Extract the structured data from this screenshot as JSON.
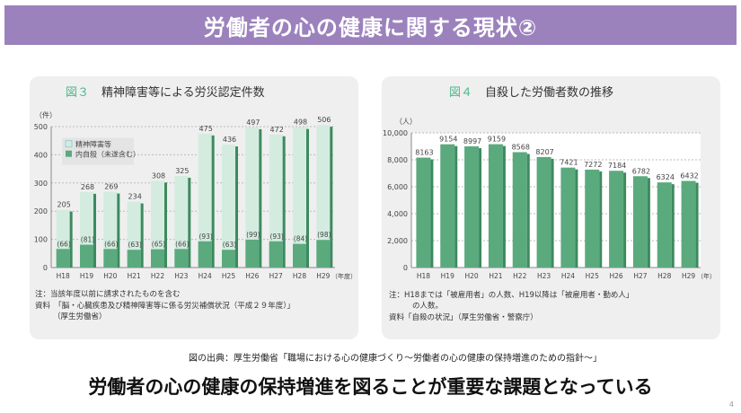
{
  "slide": {
    "title": "労働者の心の健康に関する現状②",
    "source": "図の出典：厚生労働省「職場における心の健康づくり～労働者の心の健康の保持増進のための指針～」",
    "conclusion": "労働者の心の健康の保持増進を図ることが重要な課題となっている",
    "page_number": "4"
  },
  "colors": {
    "title_bar": "#9c82bd",
    "bar_dark": "#5aaa7e",
    "bar_light": "#d4ece0",
    "figure_label": "#4db88a"
  },
  "chart_data": [
    {
      "type": "bar",
      "figure_label": "図３",
      "title": "精神障害等による労災認定件数",
      "ylabel": "（件）",
      "xlabel_unit": "（年度）",
      "ylim": [
        0,
        500
      ],
      "yticks": [
        "0",
        "100",
        "200",
        "300",
        "400",
        "500"
      ],
      "categories": [
        "H18",
        "H19",
        "H20",
        "H21",
        "H22",
        "H23",
        "H24",
        "H25",
        "H26",
        "H27",
        "H28",
        "H29"
      ],
      "legend": [
        "精神障害等",
        "内自殺（未遂含む）"
      ],
      "legend_position": "top-left",
      "series": [
        {
          "name": "精神障害等",
          "values": [
            205,
            268,
            269,
            234,
            308,
            325,
            475,
            436,
            497,
            472,
            498,
            506
          ]
        },
        {
          "name": "内自殺（未遂含む）",
          "values": [
            66,
            81,
            66,
            63,
            65,
            66,
            93,
            63,
            99,
            93,
            84,
            98
          ]
        }
      ],
      "notes": [
        "注：当該年度以前に請求されたものを含む",
        "資料　「脳・心臓疾患及び精神障害等に係る労災補償状況（平成２９年度）」",
        "（厚生労働省）"
      ]
    },
    {
      "type": "bar",
      "figure_label": "図４",
      "title": "自殺した労働者数の推移",
      "ylabel": "（人）",
      "xlabel_unit": "（年）",
      "ylim": [
        0,
        10000
      ],
      "yticks": [
        "0",
        "2,000",
        "4,000",
        "6,000",
        "8,000",
        "10,000"
      ],
      "categories": [
        "H18",
        "H19",
        "H20",
        "H21",
        "H22",
        "H23",
        "H24",
        "H25",
        "H26",
        "H27",
        "H28",
        "H29"
      ],
      "values": [
        8163,
        9154,
        8997,
        9159,
        8568,
        8207,
        7421,
        7272,
        7184,
        6782,
        6324,
        6432
      ],
      "notes": [
        "注：H18までは「被雇用者」の人数、H19以降は「被雇用者・勤め人」",
        "の人数。",
        "資料「自殺の状況」（厚生労働省・警察庁）"
      ]
    }
  ]
}
